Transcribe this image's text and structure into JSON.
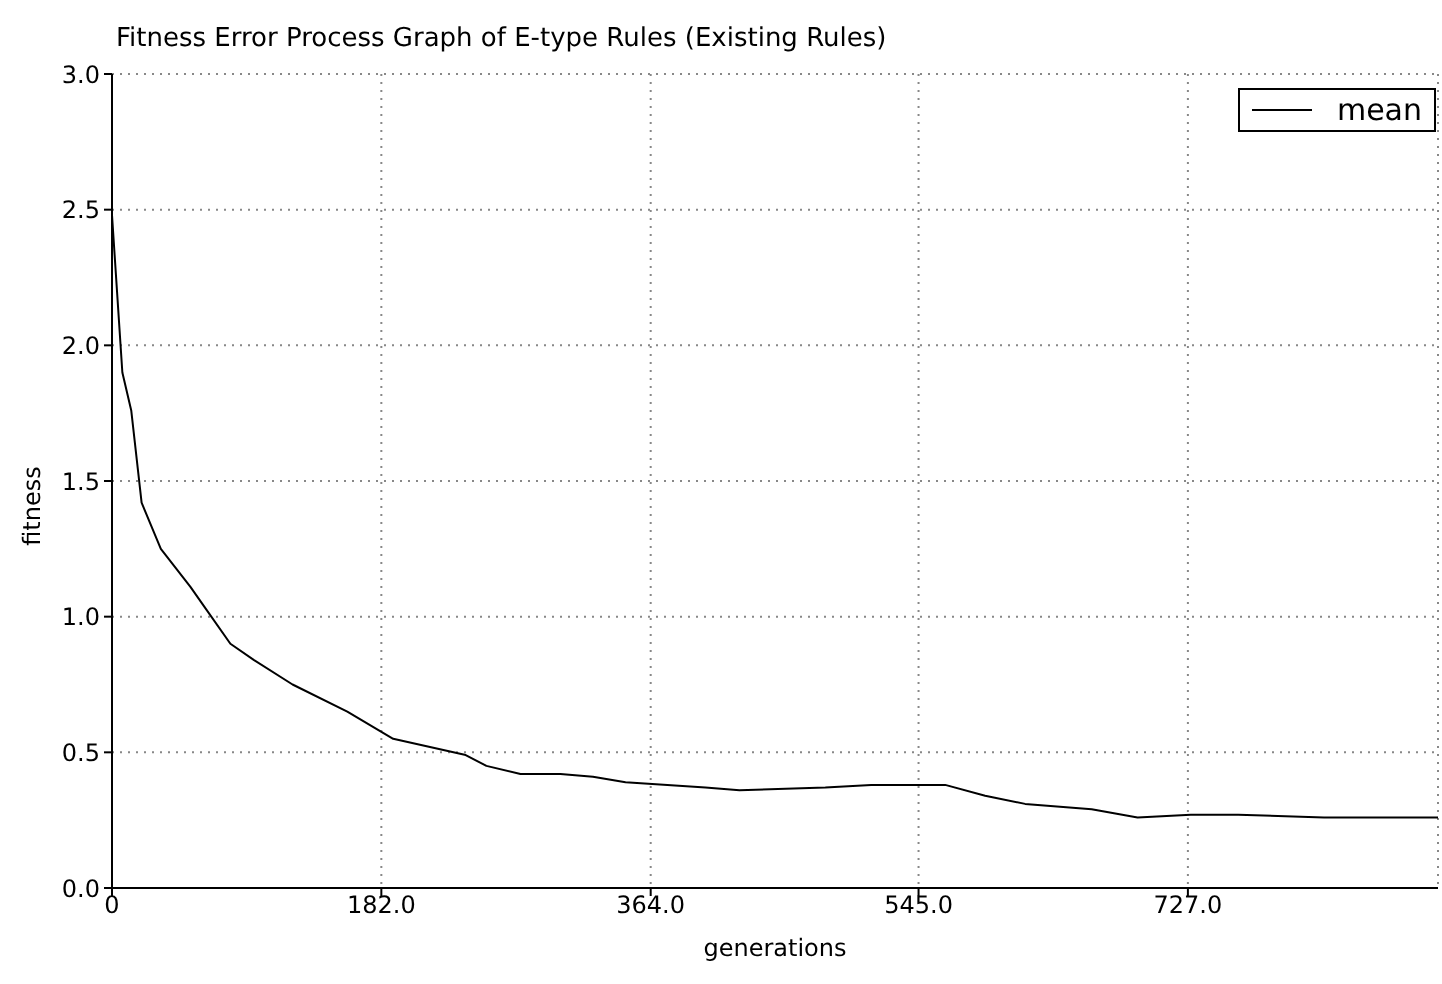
{
  "chart_data": {
    "type": "line",
    "title": "Fitness Error Process Graph of E-type Rules (Existing Rules)",
    "xlabel": "generations",
    "ylabel": "fitness",
    "series": [
      {
        "name": "mean",
        "color": "#000000",
        "x": [
          0,
          7,
          13,
          20,
          33,
          53,
          62,
          80,
          96,
          122,
          159,
          190,
          239,
          253,
          276,
          303,
          325,
          347,
          401,
          424,
          482,
          513,
          563,
          590,
          617,
          662,
          693,
          729,
          761,
          819,
          842,
          896
        ],
        "values": [
          2.48,
          1.9,
          1.76,
          1.42,
          1.25,
          1.11,
          1.04,
          0.9,
          0.84,
          0.75,
          0.65,
          0.55,
          0.49,
          0.45,
          0.42,
          0.42,
          0.41,
          0.39,
          0.37,
          0.36,
          0.37,
          0.38,
          0.38,
          0.34,
          0.31,
          0.29,
          0.26,
          0.27,
          0.27,
          0.26,
          0.26,
          0.26
        ]
      }
    ],
    "xlim": [
      0,
      896
    ],
    "xticks": [
      0,
      {
        "value": 182,
        "label": "182.0"
      },
      {
        "value": 364,
        "label": "364.0"
      },
      {
        "value": 545,
        "label": "545.0"
      },
      {
        "value": 727,
        "label": "727.0"
      }
    ],
    "ylim": [
      0,
      3
    ],
    "yticks": [
      {
        "value": 0,
        "label": "0.0"
      },
      {
        "value": 0.5,
        "label": "0.5"
      },
      {
        "value": 1,
        "label": "1.0"
      },
      {
        "value": 1.5,
        "label": "1.5"
      },
      {
        "value": 2,
        "label": "2.0"
      },
      {
        "value": 2.5,
        "label": "2.5"
      },
      {
        "value": 3,
        "label": "3.0"
      }
    ],
    "grid": true,
    "legend": "top right",
    "marker": "none",
    "line_style": "solid"
  }
}
